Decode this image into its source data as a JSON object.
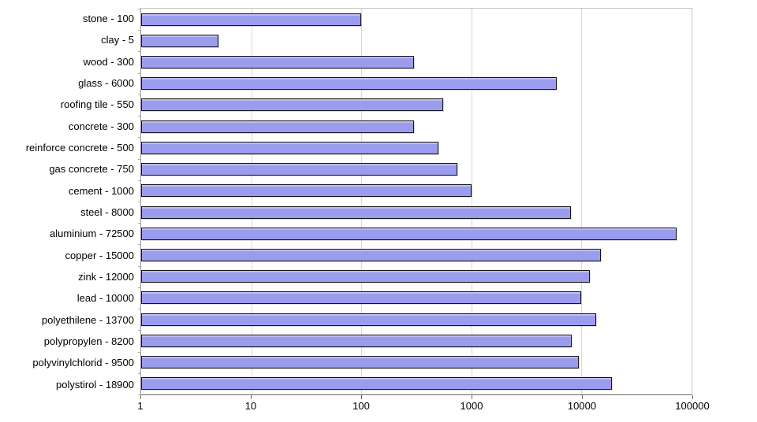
{
  "chart_data": {
    "type": "bar",
    "orientation": "horizontal",
    "x_scale": "log10",
    "title": "",
    "xlabel": "",
    "ylabel": "",
    "xlim": [
      1,
      100000
    ],
    "x_ticks": [
      "1",
      "10",
      "100",
      "1000",
      "10000",
      "100000"
    ],
    "grid": true,
    "legend": false,
    "categories": [
      "stone - 100",
      "clay - 5",
      "wood - 300",
      "glass - 6000",
      "roofing tile - 550",
      "concrete - 300",
      "reinforce concrete - 500",
      "gas concrete - 750",
      "cement - 1000",
      "steel - 8000",
      "aluminium - 72500",
      "copper - 15000",
      "zink - 12000",
      "lead - 10000",
      "polyethilene - 13700",
      "polypropylen - 8200",
      "polyvinylchlorid - 9500",
      "polystirol - 18900"
    ],
    "values": [
      100,
      5,
      300,
      6000,
      550,
      300,
      500,
      750,
      1000,
      8000,
      72500,
      15000,
      12000,
      10000,
      13700,
      8200,
      9500,
      18900
    ]
  },
  "colors": {
    "background": "#ffffff",
    "bar_fill": "#9c9cee",
    "bar_border": "#141414",
    "grid_line": "#d9d9d9",
    "plot_border": "#c6c6c6",
    "axis_line": "#666666",
    "text": "#000000"
  }
}
